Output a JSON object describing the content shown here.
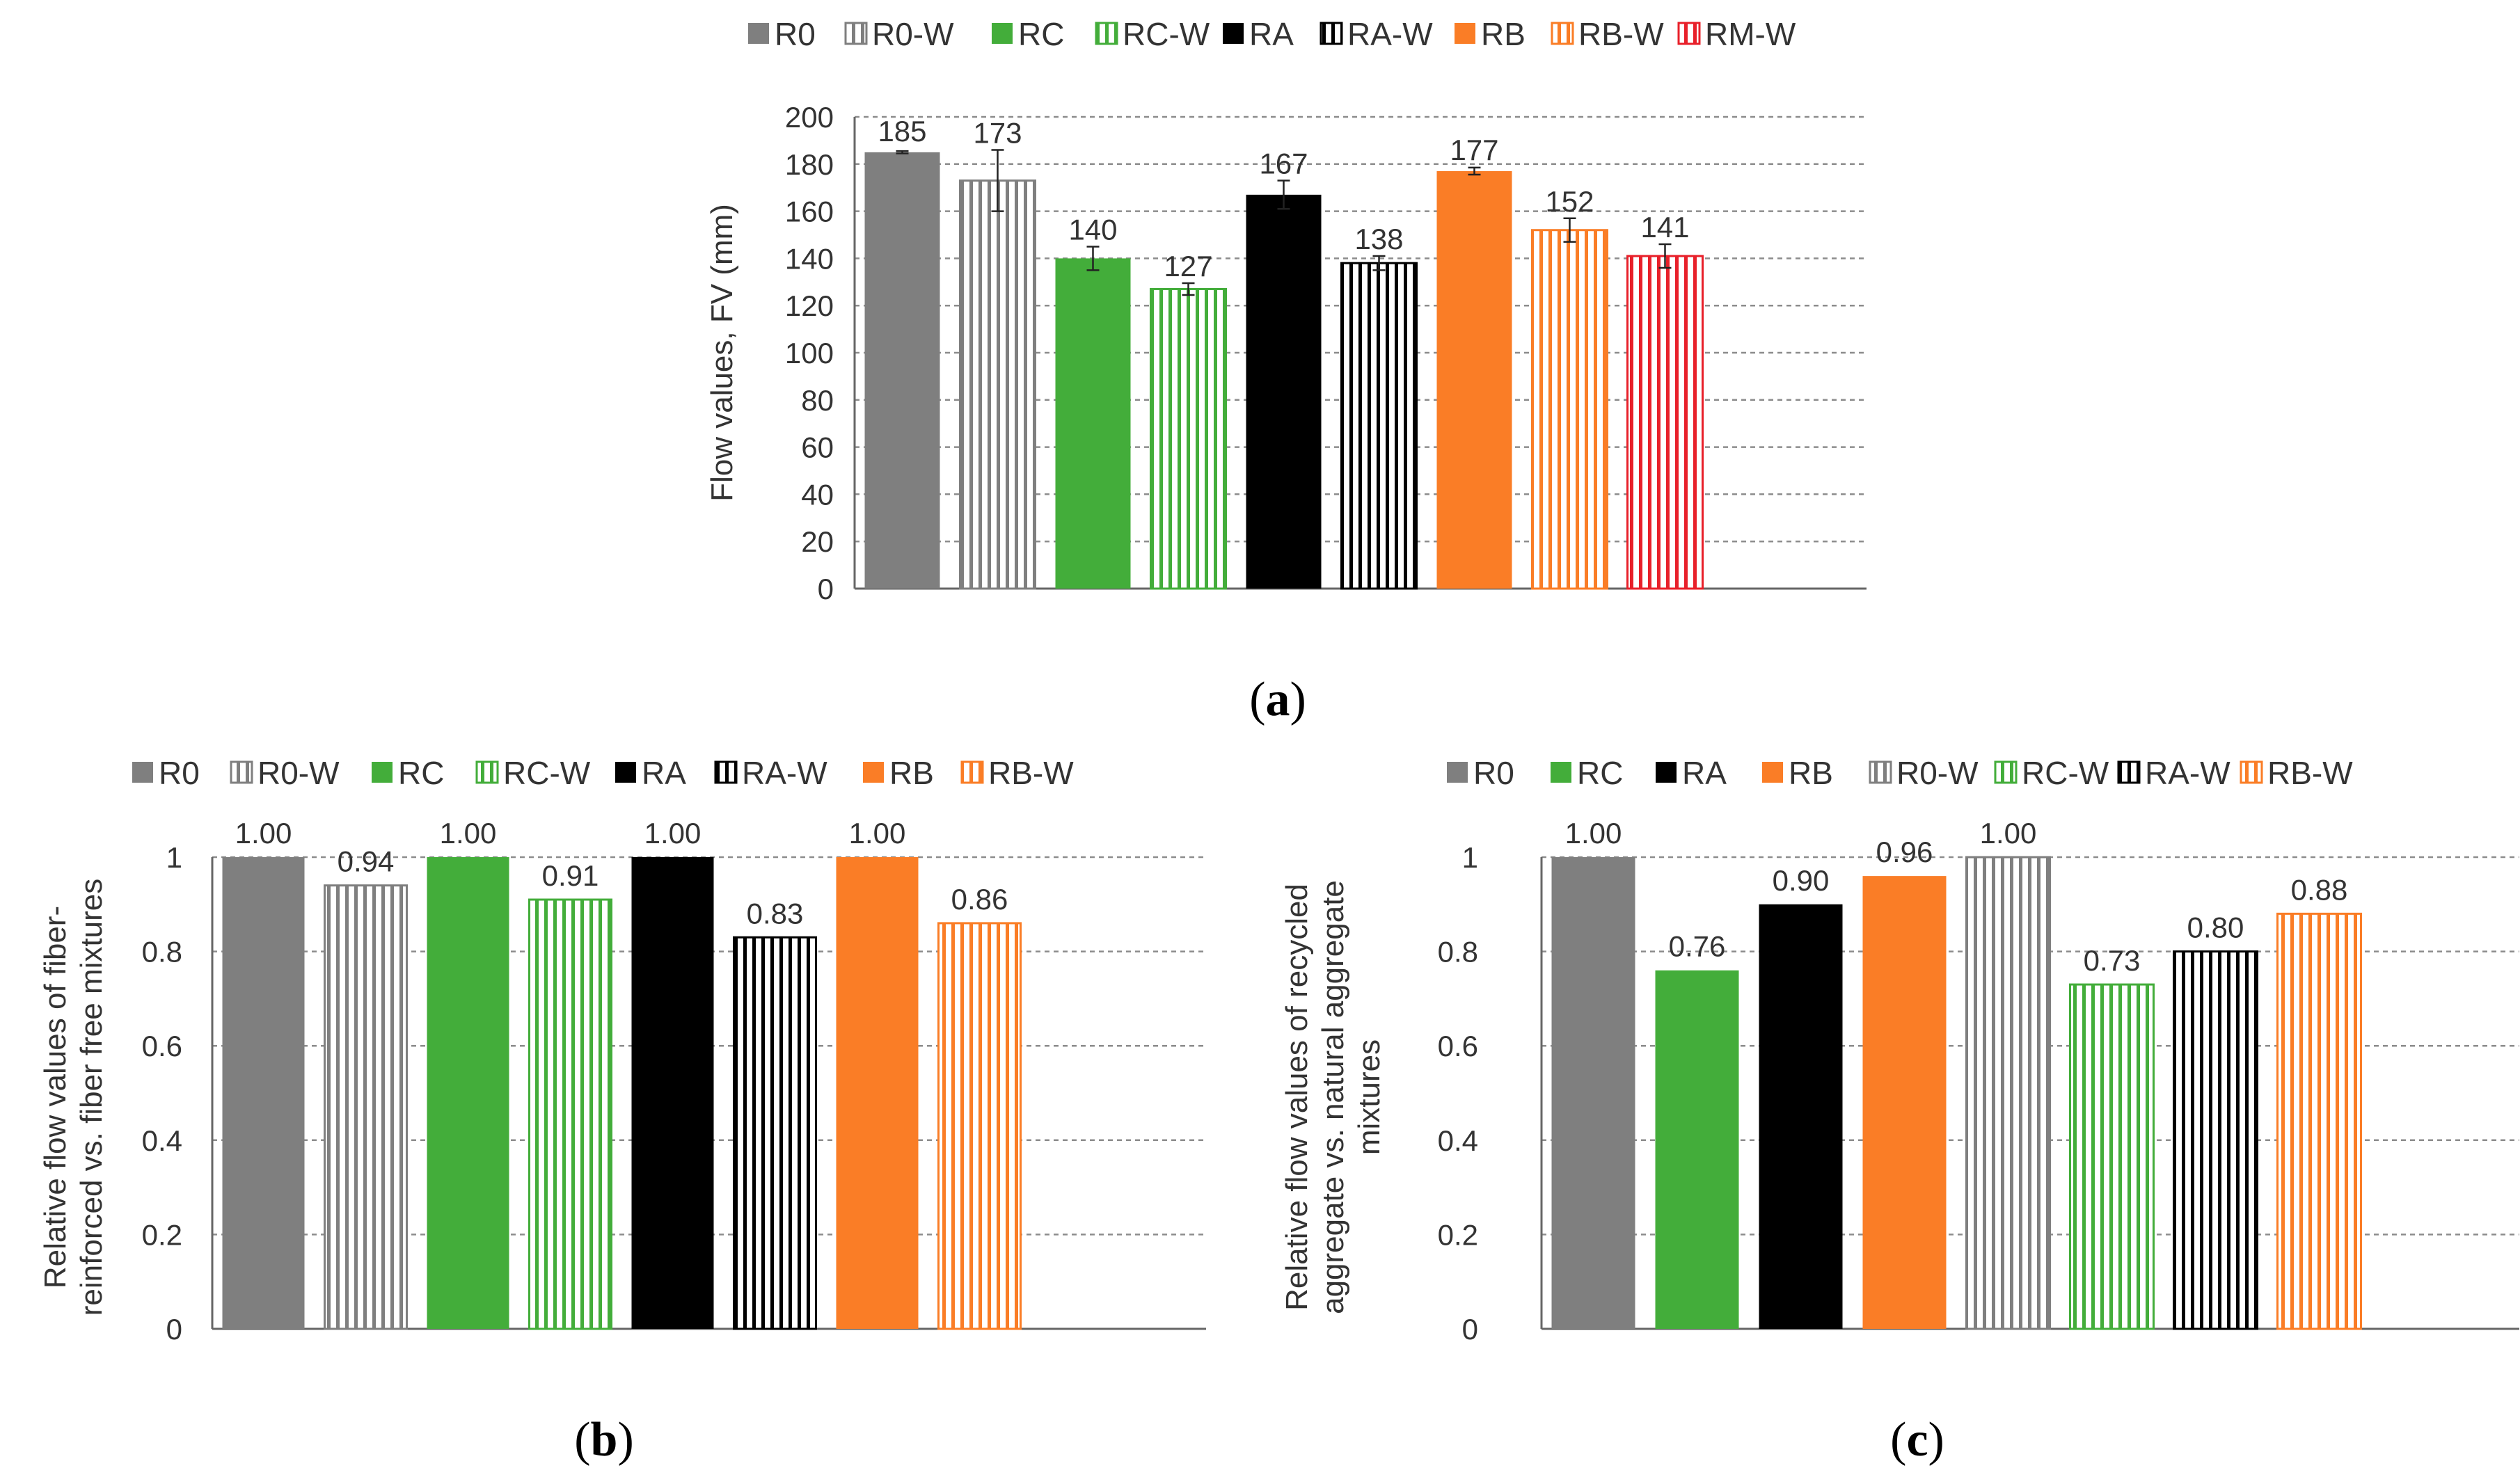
{
  "colors": {
    "gray": "#7f7f7f",
    "green": "#43ad3a",
    "black": "#000000",
    "orange": "#fa7d26",
    "red": "#e8202a"
  },
  "panels": {
    "a": {
      "label": "a"
    },
    "b": {
      "label": "b"
    },
    "c": {
      "label": "c"
    }
  },
  "chart_data": [
    {
      "id": "a",
      "type": "bar",
      "title": "",
      "xlabel": "",
      "ylabel": "Flow values, FV (mm)",
      "ylim": [
        0,
        200
      ],
      "yticks": [
        0,
        20,
        40,
        60,
        80,
        100,
        120,
        140,
        160,
        180,
        200
      ],
      "grid": true,
      "legend_position": "top",
      "categories": [
        "R0",
        "R0-W",
        "RC",
        "RC-W",
        "RA",
        "RA-W",
        "RB",
        "RB-W",
        "RM-W"
      ],
      "values": [
        185,
        173,
        140,
        127,
        167,
        138,
        177,
        152,
        141
      ],
      "value_labels": [
        "185",
        "173",
        "140",
        "127",
        "167",
        "138",
        "177",
        "152",
        "141"
      ],
      "error": [
        0.5,
        13,
        5,
        2.5,
        6,
        3,
        1.5,
        5,
        5
      ],
      "styles": [
        {
          "color": "gray",
          "hatch": false
        },
        {
          "color": "gray",
          "hatch": true
        },
        {
          "color": "green",
          "hatch": false
        },
        {
          "color": "green",
          "hatch": true
        },
        {
          "color": "black",
          "hatch": false
        },
        {
          "color": "black",
          "hatch": true
        },
        {
          "color": "orange",
          "hatch": false
        },
        {
          "color": "orange",
          "hatch": true
        },
        {
          "color": "red",
          "hatch": true
        }
      ]
    },
    {
      "id": "b",
      "type": "bar",
      "title": "",
      "xlabel": "",
      "ylabel_lines": [
        "Relative flow values of fiber-",
        "reinforced vs. fiber free mixtures"
      ],
      "ylim": [
        0,
        1
      ],
      "yticks": [
        0,
        0.2,
        0.4,
        0.6,
        0.8,
        1
      ],
      "ytick_labels": [
        "0",
        "0.2",
        "0.4",
        "0.6",
        "0.8",
        "1"
      ],
      "grid": true,
      "legend_position": "top",
      "categories": [
        "R0",
        "R0-W",
        "RC",
        "RC-W",
        "RA",
        "RA-W",
        "RB",
        "RB-W"
      ],
      "values": [
        1.0,
        0.94,
        1.0,
        0.91,
        1.0,
        0.83,
        1.0,
        0.86
      ],
      "value_labels": [
        "1.00",
        "0.94",
        "1.00",
        "0.91",
        "1.00",
        "0.83",
        "1.00",
        "0.86"
      ],
      "styles": [
        {
          "color": "gray",
          "hatch": false
        },
        {
          "color": "gray",
          "hatch": true
        },
        {
          "color": "green",
          "hatch": false
        },
        {
          "color": "green",
          "hatch": true
        },
        {
          "color": "black",
          "hatch": false
        },
        {
          "color": "black",
          "hatch": true
        },
        {
          "color": "orange",
          "hatch": false
        },
        {
          "color": "orange",
          "hatch": true
        }
      ]
    },
    {
      "id": "c",
      "type": "bar",
      "title": "",
      "xlabel": "",
      "ylabel_lines": [
        "Relative flow values of recycled",
        "aggregate  vs. natural aggregate",
        "mixtures"
      ],
      "ylim": [
        0,
        1
      ],
      "yticks": [
        0,
        0.2,
        0.4,
        0.6,
        0.8,
        1
      ],
      "ytick_labels": [
        "0",
        "0.2",
        "0.4",
        "0.6",
        "0.8",
        "1"
      ],
      "grid": true,
      "legend_position": "top",
      "categories": [
        "R0",
        "RC",
        "RA",
        "RB",
        "R0-W",
        "RC-W",
        "RA-W",
        "RB-W"
      ],
      "values": [
        1.0,
        0.76,
        0.9,
        0.96,
        1.0,
        0.73,
        0.8,
        0.88
      ],
      "value_labels": [
        "1.00",
        "0.76",
        "0.90",
        "0.96",
        "1.00",
        "0.73",
        "0.80",
        "0.88"
      ],
      "styles": [
        {
          "color": "gray",
          "hatch": false
        },
        {
          "color": "green",
          "hatch": false
        },
        {
          "color": "black",
          "hatch": false
        },
        {
          "color": "orange",
          "hatch": false
        },
        {
          "color": "gray",
          "hatch": true
        },
        {
          "color": "green",
          "hatch": true
        },
        {
          "color": "black",
          "hatch": true
        },
        {
          "color": "orange",
          "hatch": true
        }
      ]
    }
  ]
}
